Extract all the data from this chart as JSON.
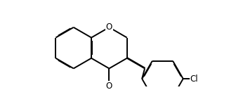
{
  "bg_color": "#ffffff",
  "bond_color": "#000000",
  "bond_lw": 1.4,
  "dbo_inner": 0.025,
  "dbo_outer": 0.025,
  "font_size": 8.5,
  "text_color": "#000000",
  "figsize": [
    3.26,
    1.38
  ],
  "dpi": 100,
  "xlim": [
    0,
    326
  ],
  "ylim": [
    0,
    138
  ]
}
